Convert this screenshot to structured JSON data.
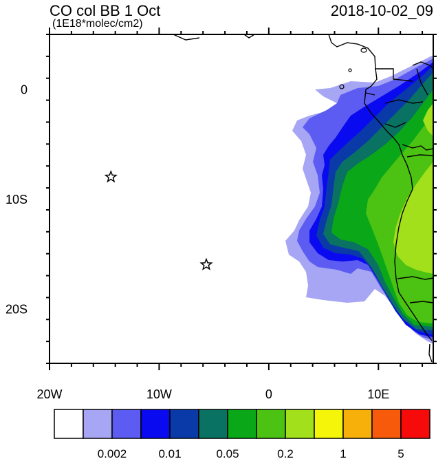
{
  "title": "CO col BB 1 Oct",
  "units": "(1E18*molec/cm2)",
  "datetime": "2018-10-02_09",
  "axes": {
    "x_ticks": [
      {
        "value": -20,
        "label": "20W"
      },
      {
        "value": -10,
        "label": "10W"
      },
      {
        "value": 0,
        "label": "0"
      },
      {
        "value": 10,
        "label": "10E"
      }
    ],
    "y_ticks": [
      {
        "value": 0,
        "label": "0"
      },
      {
        "value": -10,
        "label": "10S"
      },
      {
        "value": -20,
        "label": "20S"
      }
    ],
    "lon_range": [
      -20,
      15
    ],
    "lat_range": [
      -25,
      5
    ]
  },
  "markers": [
    {
      "name": "star",
      "lon": -14.4,
      "lat": -8.0
    },
    {
      "name": "star",
      "lon": -5.7,
      "lat": -16.0
    }
  ],
  "colorbar": {
    "colors": [
      "#ffffff",
      "#a6a6f5",
      "#5c5cf2",
      "#0a0af0",
      "#0a3aa8",
      "#0a7262",
      "#0aa818",
      "#4cc212",
      "#a2e01c",
      "#f5f50a",
      "#f7b00a",
      "#f75a0a",
      "#f70a0a"
    ],
    "labels": [
      "0.002",
      "0.01",
      "0.05",
      "0.2",
      "1",
      "5"
    ]
  }
}
